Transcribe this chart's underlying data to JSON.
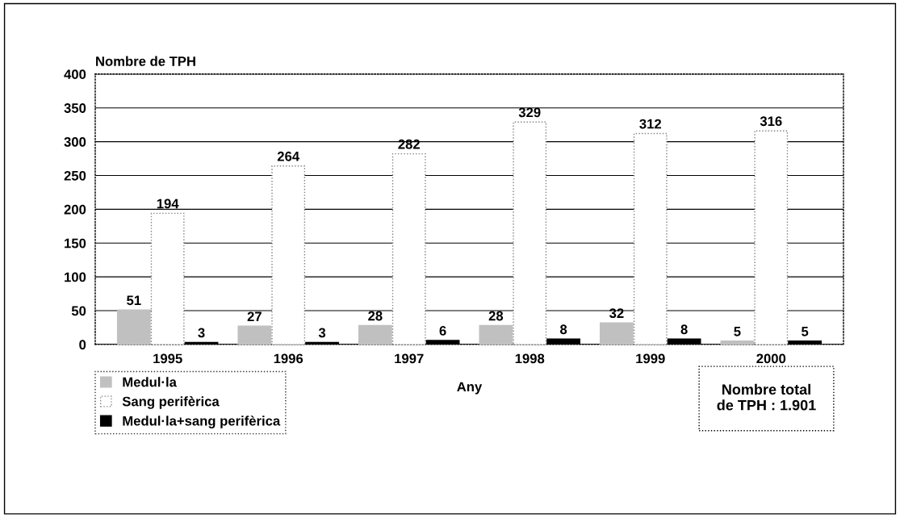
{
  "chart_data": {
    "type": "bar",
    "ylabel": "Nombre de TPH",
    "xlabel": "Any",
    "categories": [
      "1995",
      "1996",
      "1997",
      "1998",
      "1999",
      "2000"
    ],
    "series": [
      {
        "name": "Medul·la",
        "color": "#c0c0c0",
        "values": [
          51,
          27,
          28,
          28,
          32,
          5
        ]
      },
      {
        "name": "Sang perifèrica",
        "color": "#ffffff",
        "values": [
          194,
          264,
          282,
          329,
          312,
          316
        ]
      },
      {
        "name": "Medul·la+sang perifèrica",
        "color": "#000000",
        "values": [
          3,
          3,
          6,
          8,
          8,
          5
        ]
      }
    ],
    "ylim": [
      0,
      400
    ],
    "yticks": [
      0,
      50,
      100,
      150,
      200,
      250,
      300,
      350,
      400
    ],
    "grid": "y",
    "legend": "bottom left",
    "data_labels": true,
    "annotations": [
      "Nombre total\nde TPH : 1.901"
    ]
  }
}
